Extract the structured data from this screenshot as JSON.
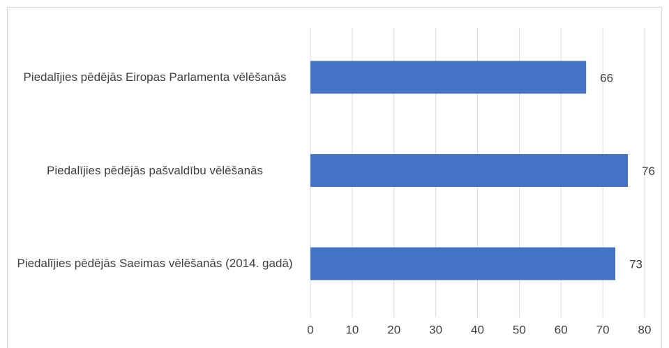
{
  "chart_data": {
    "type": "hbar",
    "categories": [
      "Piedalījies pēdējās Eiropas Parlamenta vēlēšanās",
      "Piedalījies pēdējās pašvaldību vēlēšanās",
      "Piedalījies pēdējās  Saeimas vēlēšanās (2014. gadā)"
    ],
    "values": [
      66,
      76,
      73
    ],
    "color": "#4472c4",
    "xlim": [
      0,
      80
    ],
    "xticks": [
      0,
      10,
      20,
      30,
      40,
      50,
      60,
      70,
      80
    ],
    "grid": true
  }
}
